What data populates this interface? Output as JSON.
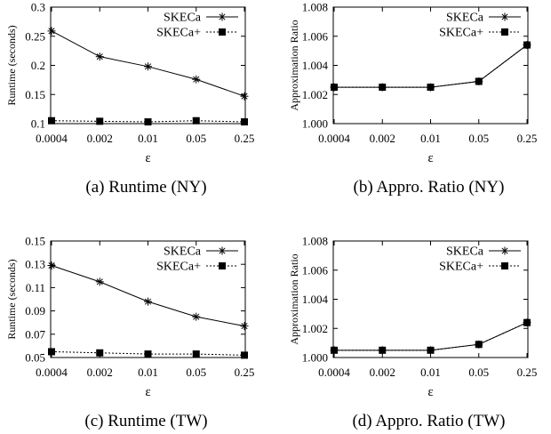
{
  "chart_data": [
    {
      "type": "line",
      "caption": "(a) Runtime (NY)",
      "xlabel": "ε",
      "ylabel": "Runtime (seconds)",
      "categories": [
        "0.0004",
        "0.002",
        "0.01",
        "0.05",
        "0.25"
      ],
      "ylim": [
        0.1,
        0.3
      ],
      "yticks": [
        "0.1",
        "0.15",
        "0.2",
        "0.25",
        "0.3"
      ],
      "legend_position": "top-right",
      "series": [
        {
          "name": "SKECa",
          "marker": "asterisk",
          "dash": "solid",
          "values": [
            0.259,
            0.215,
            0.198,
            0.176,
            0.147
          ]
        },
        {
          "name": "SKECa+",
          "marker": "square",
          "dash": "dotted",
          "values": [
            0.105,
            0.104,
            0.103,
            0.105,
            0.103
          ]
        }
      ]
    },
    {
      "type": "line",
      "caption": "(b) Appro. Ratio (NY)",
      "xlabel": "ε",
      "ylabel": "Approximation Ratio",
      "categories": [
        "0.0004",
        "0.002",
        "0.01",
        "0.05",
        "0.25"
      ],
      "ylim": [
        1.0,
        1.008
      ],
      "yticks": [
        "1.000",
        "1.002",
        "1.004",
        "1.006",
        "1.008"
      ],
      "legend_position": "top-right",
      "series": [
        {
          "name": "SKECa",
          "marker": "asterisk",
          "dash": "solid",
          "values": [
            1.0025,
            1.0025,
            1.0025,
            1.0029,
            1.0054
          ]
        },
        {
          "name": "SKECa+",
          "marker": "square",
          "dash": "dotted",
          "values": [
            1.0025,
            1.0025,
            1.0025,
            1.0029,
            1.0054
          ]
        }
      ]
    },
    {
      "type": "line",
      "caption": "(c) Runtime (TW)",
      "xlabel": "ε",
      "ylabel": "Runtime (seconds)",
      "categories": [
        "0.0004",
        "0.002",
        "0.01",
        "0.05",
        "0.25"
      ],
      "ylim": [
        0.05,
        0.15
      ],
      "yticks": [
        "0.05",
        "0.07",
        "0.09",
        "0.11",
        "0.13",
        "0.15"
      ],
      "legend_position": "top-right",
      "series": [
        {
          "name": "SKECa",
          "marker": "asterisk",
          "dash": "solid",
          "values": [
            0.129,
            0.115,
            0.098,
            0.085,
            0.077
          ]
        },
        {
          "name": "SKECa+",
          "marker": "square",
          "dash": "dotted",
          "values": [
            0.055,
            0.054,
            0.053,
            0.053,
            0.052
          ]
        }
      ]
    },
    {
      "type": "line",
      "caption": "(d) Appro. Ratio (TW)",
      "xlabel": "ε",
      "ylabel": "Approximation Ratio",
      "categories": [
        "0.0004",
        "0.002",
        "0.01",
        "0.05",
        "0.25"
      ],
      "ylim": [
        1.0,
        1.008
      ],
      "yticks": [
        "1.000",
        "1.002",
        "1.004",
        "1.006",
        "1.008"
      ],
      "legend_position": "top-right",
      "series": [
        {
          "name": "SKECa",
          "marker": "asterisk",
          "dash": "solid",
          "values": [
            1.0005,
            1.0005,
            1.0005,
            1.0009,
            1.0024
          ]
        },
        {
          "name": "SKECa+",
          "marker": "square",
          "dash": "dotted",
          "values": [
            1.0005,
            1.0005,
            1.0005,
            1.0009,
            1.0024
          ]
        }
      ]
    }
  ]
}
